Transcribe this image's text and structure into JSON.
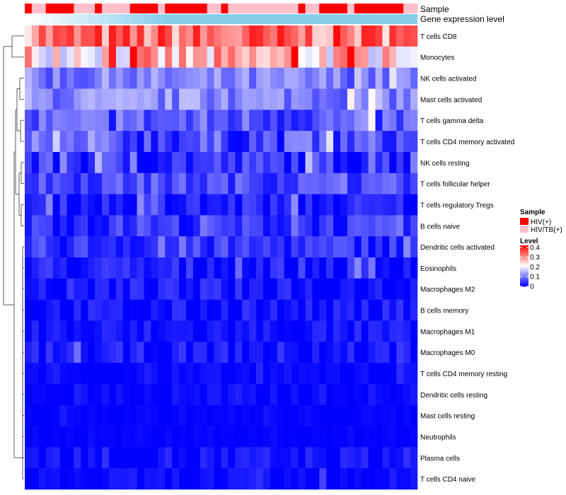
{
  "chart_data": {
    "type": "heatmap",
    "annotation_labels": {
      "sample": "Sample",
      "group": "Gene expression level"
    },
    "legend": {
      "sample_title": "Sample",
      "sample_entries": [
        {
          "label": "HIV(+)",
          "color": "#ff0000"
        },
        {
          "label": "HIV/TB(+)",
          "color": "#ffc0cb"
        }
      ],
      "level_title": "Level",
      "level_ticks": [
        {
          "label": "0.4",
          "value": 0.4
        },
        {
          "label": "0.3",
          "value": 0.3
        },
        {
          "label": "0.2",
          "value": 0.2
        },
        {
          "label": "0.1",
          "value": 0.1
        },
        {
          "label": "0",
          "value": 0.0
        }
      ],
      "level_range": [
        0,
        0.42
      ],
      "placement": "right"
    },
    "colors": {
      "low": "#0000ff",
      "mid": "#ffffff",
      "high": "#ff0000",
      "group_bar": "#87ceeb"
    },
    "color_midpoint": 0.21,
    "sample_groups": [
      1,
      2,
      2,
      1,
      1,
      1,
      1,
      2,
      2,
      2,
      1,
      2,
      2,
      2,
      2,
      1,
      1,
      1,
      1,
      2,
      1,
      1,
      1,
      1,
      1,
      1,
      2,
      2,
      1,
      2,
      2,
      2,
      2,
      2,
      2,
      2,
      2,
      2,
      2,
      1,
      2,
      2,
      1,
      1,
      1,
      1,
      2,
      1,
      1,
      1,
      1,
      1,
      1,
      1,
      2,
      2
    ],
    "group_names": [
      "HIV(+)",
      "HIV/TB(+)"
    ],
    "rows": [
      {
        "label": "T cells CD8",
        "base": 0.32,
        "spread": 0.09
      },
      {
        "label": "Monocytes",
        "base": 0.25,
        "spread": 0.1
      },
      {
        "label": "NK cells activated",
        "base": 0.1,
        "spread": 0.05
      },
      {
        "label": "Mast cells activated",
        "base": 0.11,
        "spread": 0.05
      },
      {
        "label": "T cells gamma delta",
        "base": 0.07,
        "spread": 0.06
      },
      {
        "label": "T cells CD4 memory activated",
        "base": 0.06,
        "spread": 0.06
      },
      {
        "label": "NK cells resting",
        "base": 0.04,
        "spread": 0.05
      },
      {
        "label": "T cells follicular helper",
        "base": 0.06,
        "spread": 0.04
      },
      {
        "label": "T cells regulatory  Tregs",
        "base": 0.02,
        "spread": 0.04
      },
      {
        "label": "B cells naive",
        "base": 0.04,
        "spread": 0.04
      },
      {
        "label": "Dendritic cells activated",
        "base": 0.04,
        "spread": 0.04
      },
      {
        "label": "Eosinophils",
        "base": 0.02,
        "spread": 0.04
      },
      {
        "label": "Macrophages M2",
        "base": 0.015,
        "spread": 0.035
      },
      {
        "label": "B cells memory",
        "base": 0.012,
        "spread": 0.03
      },
      {
        "label": "Macrophages M1",
        "base": 0.012,
        "spread": 0.03
      },
      {
        "label": "Macrophages M0",
        "base": 0.012,
        "spread": 0.035
      },
      {
        "label": "T cells CD4 memory resting",
        "base": 0.004,
        "spread": 0.015
      },
      {
        "label": "Dendritic cells resting",
        "base": 0.006,
        "spread": 0.02
      },
      {
        "label": "Mast cells resting",
        "base": 0.002,
        "spread": 0.008
      },
      {
        "label": "Neutrophils",
        "base": 0.002,
        "spread": 0.008
      },
      {
        "label": "Plasma cells",
        "base": 0.01,
        "spread": 0.03
      },
      {
        "label": "T cells CD4 naive",
        "base": 0.006,
        "spread": 0.02
      }
    ]
  }
}
